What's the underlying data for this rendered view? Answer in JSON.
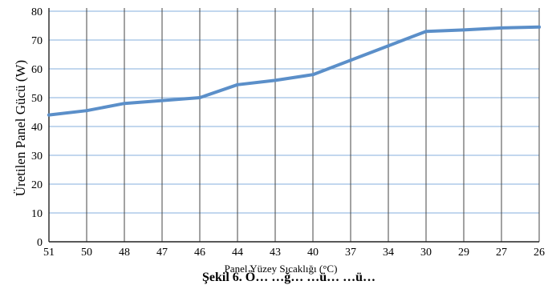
{
  "chart_data": {
    "type": "line",
    "ylabel": "Üretilen Panel Gücü (W)",
    "xlabel": "Panel Yüzey Sıcaklığı (°C)",
    "caption": "Şekil 6. Ö… …ğ… …ü… …ü…",
    "ylim": [
      0,
      80
    ],
    "yticks": [
      0,
      10,
      20,
      30,
      40,
      50,
      60,
      70,
      80
    ],
    "categories": [
      "51",
      "50",
      "48",
      "47",
      "46",
      "44",
      "43",
      "40",
      "37",
      "34",
      "30",
      "29",
      "27",
      "26"
    ],
    "series": [
      {
        "values": [
          44,
          45.5,
          48,
          49,
          50,
          54.5,
          56,
          58,
          63,
          68,
          73,
          73.5,
          74.2,
          74.5
        ]
      }
    ],
    "grid": true,
    "line_color": "#5b8fc9",
    "grid_color": "#9dbfe3"
  }
}
